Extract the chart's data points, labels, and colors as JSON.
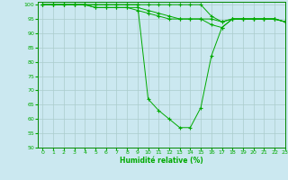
{
  "title": "",
  "xlabel": "Humidité relative (%)",
  "ylabel": "",
  "background_color": "#cbe8f0",
  "grid_color": "#aacccc",
  "line_color": "#00aa00",
  "xlim": [
    -0.5,
    23
  ],
  "ylim": [
    50,
    101
  ],
  "yticks": [
    50,
    55,
    60,
    65,
    70,
    75,
    80,
    85,
    90,
    95,
    100
  ],
  "xticks": [
    0,
    1,
    2,
    3,
    4,
    5,
    6,
    7,
    8,
    9,
    10,
    11,
    12,
    13,
    14,
    15,
    16,
    17,
    18,
    19,
    20,
    21,
    22,
    23
  ],
  "series": [
    [
      100,
      100,
      100,
      100,
      100,
      100,
      100,
      100,
      100,
      100,
      100,
      100,
      100,
      100,
      100,
      100,
      96,
      94,
      95,
      95,
      95,
      95,
      95,
      94
    ],
    [
      100,
      100,
      100,
      100,
      100,
      99,
      99,
      99,
      99,
      99,
      98,
      97,
      96,
      95,
      95,
      95,
      95,
      94,
      95,
      95,
      95,
      95,
      95,
      94
    ],
    [
      100,
      100,
      100,
      100,
      100,
      99,
      99,
      99,
      99,
      98,
      97,
      96,
      95,
      95,
      95,
      95,
      93,
      92,
      95,
      95,
      95,
      95,
      95,
      94
    ],
    [
      100,
      100,
      100,
      100,
      100,
      100,
      100,
      100,
      100,
      100,
      67,
      63,
      60,
      57,
      57,
      64,
      82,
      92,
      95,
      95,
      95,
      95,
      95,
      94
    ]
  ]
}
